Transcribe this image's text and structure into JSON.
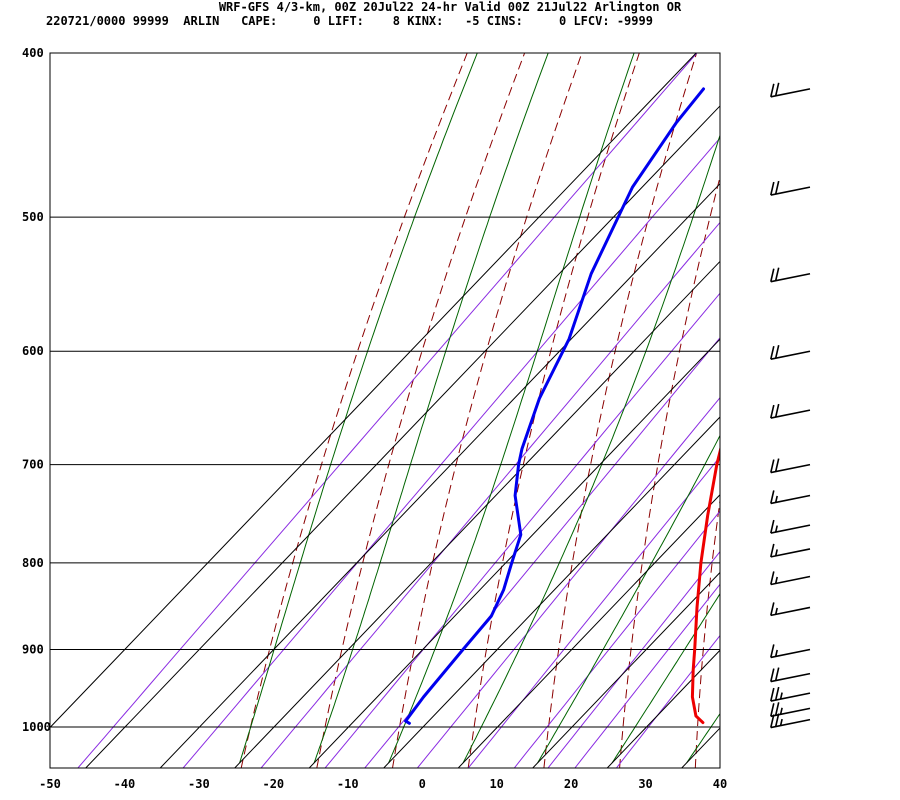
{
  "header": {
    "title": "WRF-GFS 4/3-km, 00Z 20Jul22 24-hr Valid 00Z 21Jul22 Arlington OR",
    "station_line": "220721/0000 99999  ARLIN",
    "stats": [
      {
        "label": "CAPE:",
        "value": "0"
      },
      {
        "label": "LIFT:",
        "value": "8"
      },
      {
        "label": "KINX:",
        "value": "-5"
      },
      {
        "label": "CINS:",
        "value": "0"
      },
      {
        "label": "LFCV:",
        "value": "-9999"
      }
    ]
  },
  "chart_data": {
    "type": "line",
    "title": "WRF-GFS 4/3-km, 00Z 20Jul22 24-hr Valid 00Z 21Jul22 Arlington OR",
    "xlabel": "",
    "ylabel": "",
    "x_scale": "skew-T temperature (°C)",
    "y_scale": "log pressure (hPa), decreasing upward",
    "x_ticks": [
      "-50",
      "-40",
      "-30",
      "-20",
      "-10",
      "0",
      "10",
      "20",
      "30",
      "40"
    ],
    "y_ticks": [
      "400",
      "500",
      "600",
      "700",
      "800",
      "900",
      "1000"
    ],
    "grid": true,
    "series": [
      {
        "name": "",
        "color": "#ee0000",
        "points": [
          {
            "p": 994,
            "t": 37.0
          },
          {
            "p": 985,
            "t": 35.2
          },
          {
            "p": 960,
            "t": 32.3
          },
          {
            "p": 925,
            "t": 28.9
          },
          {
            "p": 900,
            "t": 26.5
          },
          {
            "p": 850,
            "t": 21.4
          },
          {
            "p": 800,
            "t": 16.2
          },
          {
            "p": 750,
            "t": 11.0
          },
          {
            "p": 700,
            "t": 5.7
          },
          {
            "p": 650,
            "t": 0.5
          },
          {
            "p": 600,
            "t": -4.5
          },
          {
            "p": 550,
            "t": -9.6
          },
          {
            "p": 500,
            "t": -15.0
          },
          {
            "p": 475,
            "t": -17.8
          },
          {
            "p": 450,
            "t": -21.0
          },
          {
            "p": 420,
            "t": -24.3
          }
        ]
      },
      {
        "name": "",
        "color": "#0000ee",
        "points": [
          {
            "p": 995,
            "t": -2.3
          },
          {
            "p": 992,
            "t": -3.1
          },
          {
            "p": 960,
            "t": -3.8
          },
          {
            "p": 900,
            "t": -4.6
          },
          {
            "p": 860,
            "t": -5.1
          },
          {
            "p": 830,
            "t": -6.8
          },
          {
            "p": 800,
            "t": -9.2
          },
          {
            "p": 770,
            "t": -11.6
          },
          {
            "p": 730,
            "t": -17.4
          },
          {
            "p": 700,
            "t": -20.9
          },
          {
            "p": 685,
            "t": -22.5
          },
          {
            "p": 640,
            "t": -26.6
          },
          {
            "p": 590,
            "t": -30.3
          },
          {
            "p": 540,
            "t": -35.7
          },
          {
            "p": 480,
            "t": -41.3
          },
          {
            "p": 440,
            "t": -43.7
          },
          {
            "p": 420,
            "t": -44.4
          }
        ]
      }
    ],
    "wind_barbs": [
      {
        "p": 420,
        "speed_kt": 20,
        "dir_deg": 250
      },
      {
        "p": 480,
        "speed_kt": 20,
        "dir_deg": 250
      },
      {
        "p": 540,
        "speed_kt": 20,
        "dir_deg": 250
      },
      {
        "p": 600,
        "speed_kt": 20,
        "dir_deg": 250
      },
      {
        "p": 650,
        "speed_kt": 20,
        "dir_deg": 255
      },
      {
        "p": 700,
        "speed_kt": 20,
        "dir_deg": 255
      },
      {
        "p": 730,
        "speed_kt": 15,
        "dir_deg": 255
      },
      {
        "p": 760,
        "speed_kt": 15,
        "dir_deg": 260
      },
      {
        "p": 785,
        "speed_kt": 15,
        "dir_deg": 265
      },
      {
        "p": 815,
        "speed_kt": 15,
        "dir_deg": 270
      },
      {
        "p": 850,
        "speed_kt": 15,
        "dir_deg": 275
      },
      {
        "p": 900,
        "speed_kt": 15,
        "dir_deg": 265
      },
      {
        "p": 930,
        "speed_kt": 20,
        "dir_deg": 260
      },
      {
        "p": 955,
        "speed_kt": 25,
        "dir_deg": 255
      },
      {
        "p": 975,
        "speed_kt": 25,
        "dir_deg": 255
      },
      {
        "p": 990,
        "speed_kt": 25,
        "dir_deg": 250
      }
    ],
    "colors": {
      "dry_adiabat": "#8b0000",
      "moist_adiabat": "#006400",
      "mixing_ratio": "#8a2be2",
      "grid": "#000000",
      "temperature": "#ee0000",
      "dewpoint": "#0000ee"
    }
  }
}
